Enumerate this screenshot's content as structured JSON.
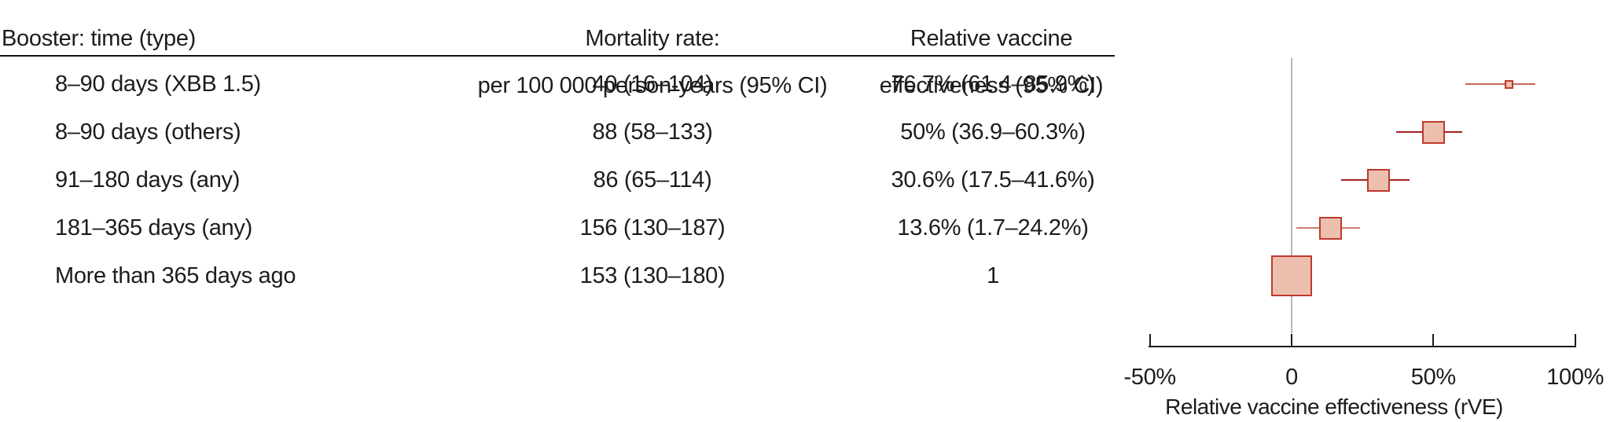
{
  "table": {
    "col1_header": "Booster: time (type)",
    "col2_header_line1": "Mortality rate:",
    "col2_header_line2": "per 100 000 person-years (95% CI)",
    "col3_header_line1": "Relative vaccine",
    "col3_header_line2": "effectiveness (95% CI)",
    "rows": [
      {
        "label": "8–90 days (XBB 1.5)",
        "mortality": "40 (16–104)",
        "rve": "76.7% (61.4–85.9%)"
      },
      {
        "label": "8–90 days (others)",
        "mortality": "88 (58–133)",
        "rve": "50% (36.9–60.3%)"
      },
      {
        "label": "91–180 days (any)",
        "mortality": "86 (65–114)",
        "rve": "30.6% (17.5–41.6%)"
      },
      {
        "label": "181–365 days (any)",
        "mortality": "156 (130–187)",
        "rve": "13.6% (1.7–24.2%)"
      },
      {
        "label": "More than 365 days ago",
        "mortality": "153 (130–180)",
        "rve": "1"
      }
    ]
  },
  "chart_data": {
    "type": "scatter",
    "subtype": "forest-plot",
    "title": "",
    "xlabel": "Relative vaccine effectiveness (rVE)",
    "xlim": [
      -50,
      100
    ],
    "grid": false,
    "legend": false,
    "reference_line_x": 0,
    "reference_line_color": "#b5b5ba",
    "axis_color": "#1a1a1a",
    "marker_fill": "#edbfae",
    "marker_border": "#bf392e",
    "xticks": [
      {
        "value": -50,
        "label": "-50%"
      },
      {
        "value": 0,
        "label": "0"
      },
      {
        "value": 50,
        "label": "50%"
      },
      {
        "value": 100,
        "label": "100%"
      }
    ],
    "series": [
      {
        "name": "8–90 days (XBB 1.5)",
        "estimate": 76.7,
        "ci_low": 61.4,
        "ci_high": 85.9,
        "marker_size_px": 11,
        "line_color": "#c9655b"
      },
      {
        "name": "8–90 days (others)",
        "estimate": 50.0,
        "ci_low": 36.9,
        "ci_high": 60.3,
        "marker_size_px": 29,
        "line_color": "#a62024"
      },
      {
        "name": "91–180 days (any)",
        "estimate": 30.6,
        "ci_low": 17.5,
        "ci_high": 41.6,
        "marker_size_px": 29,
        "line_color": "#a62024"
      },
      {
        "name": "181–365 days (any)",
        "estimate": 13.6,
        "ci_low": 1.7,
        "ci_high": 24.2,
        "marker_size_px": 29,
        "line_color": "#cf7d74"
      },
      {
        "name": "More than 365 days ago (reference)",
        "estimate": 0,
        "ci_low": null,
        "ci_high": null,
        "marker_size_px": 52,
        "line_color": null
      }
    ]
  }
}
